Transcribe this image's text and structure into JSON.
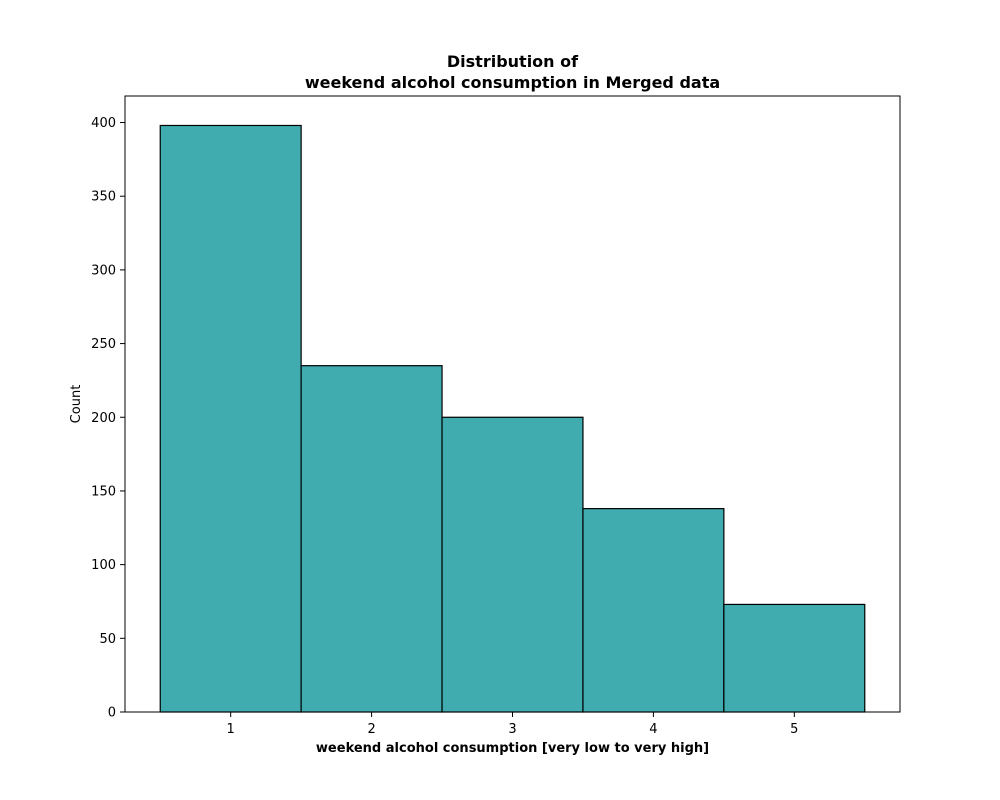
{
  "chart_data": {
    "type": "bar",
    "title_lines": [
      "Distribution of",
      "weekend alcohol consumption in Merged data"
    ],
    "xlabel": "weekend alcohol consumption [very low to very high]",
    "ylabel": "Count",
    "categories": [
      "1",
      "2",
      "3",
      "4",
      "5"
    ],
    "values": [
      398,
      235,
      200,
      138,
      73
    ],
    "x_range": [
      0.25,
      5.75
    ],
    "ylim": [
      0,
      418
    ],
    "y_ticks": [
      0,
      50,
      100,
      150,
      200,
      250,
      300,
      350,
      400
    ],
    "x_ticks": [
      1,
      2,
      3,
      4,
      5
    ],
    "bar_width": 1,
    "bar_color": "#40acb0",
    "edge_color": "#000000",
    "grid": false,
    "legend": "none"
  }
}
